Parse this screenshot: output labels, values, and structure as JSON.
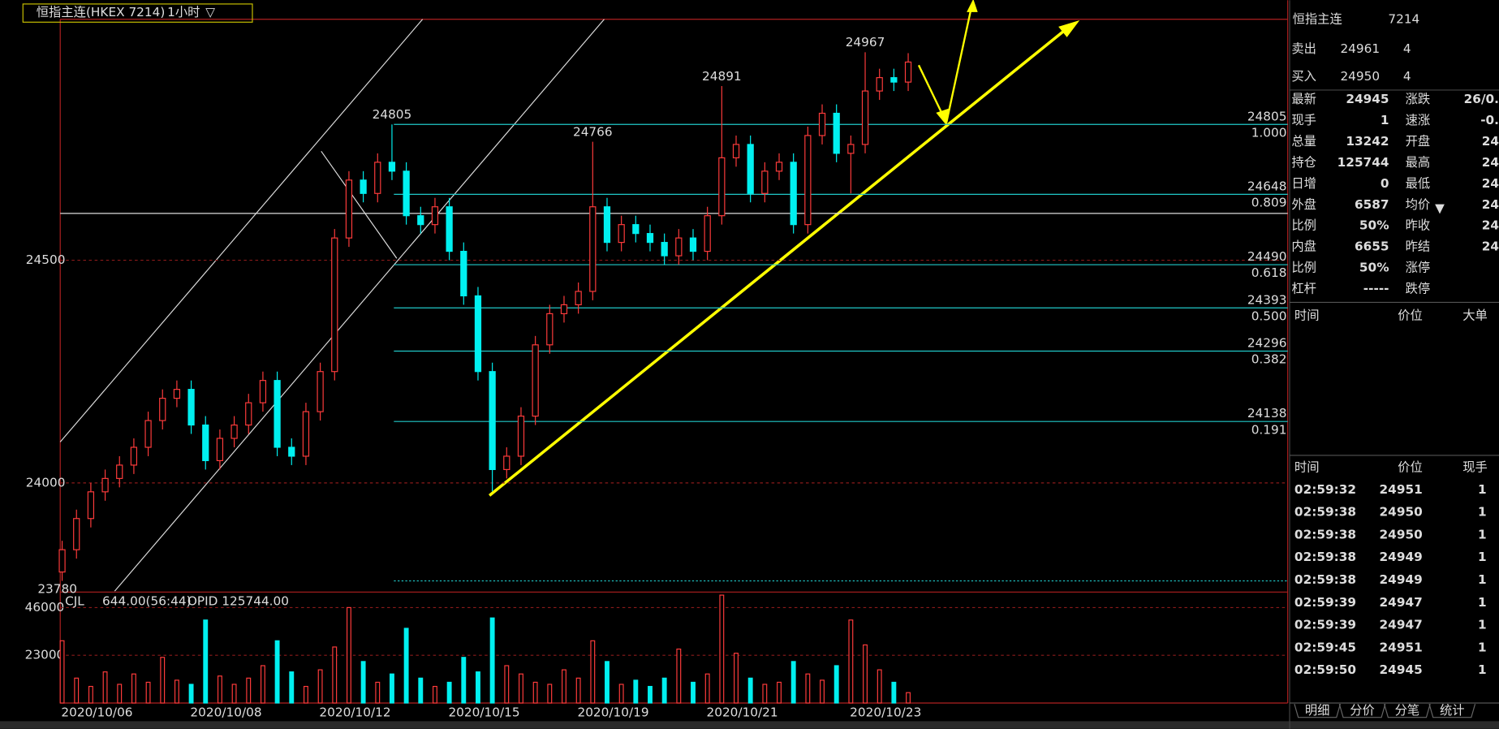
{
  "header": {
    "title": "恒指主连(HKEX 7214)",
    "period": "1小时"
  },
  "chart_data": {
    "type": "candlestick",
    "categories": [
      "2020/10/06",
      null,
      null,
      null,
      null,
      null,
      null,
      null,
      null,
      "2020/10/08",
      null,
      null,
      null,
      null,
      null,
      null,
      null,
      null,
      "2020/10/12",
      null,
      null,
      null,
      null,
      null,
      null,
      null,
      null,
      "2020/10/15",
      null,
      null,
      null,
      null,
      null,
      null,
      null,
      null,
      "2020/10/19",
      null,
      null,
      null,
      null,
      null,
      null,
      null,
      null,
      "2020/10/21",
      null,
      null,
      null,
      null,
      null,
      null,
      null,
      null,
      null,
      "2020/10/23",
      null,
      null,
      null,
      null
    ],
    "open": [
      23800,
      23850,
      23920,
      23980,
      24010,
      24040,
      24080,
      24140,
      24190,
      24210,
      24130,
      24050,
      24100,
      24130,
      24180,
      24230,
      24080,
      24060,
      24160,
      24250,
      24550,
      24680,
      24650,
      24720,
      24700,
      24600,
      24580,
      24620,
      24520,
      24420,
      24250,
      24030,
      24060,
      24150,
      24310,
      24380,
      24400,
      24430,
      24620,
      24540,
      24580,
      24560,
      24540,
      24510,
      24550,
      24520,
      24600,
      24730,
      24760,
      24650,
      24700,
      24720,
      24580,
      24780,
      24830,
      24740,
      24760,
      24880,
      24910,
      24900
    ],
    "high": [
      23870,
      23940,
      24000,
      24030,
      24060,
      24100,
      24160,
      24210,
      24230,
      24230,
      24150,
      24120,
      24150,
      24200,
      24250,
      24250,
      24100,
      24180,
      24270,
      24570,
      24700,
      24700,
      24740,
      24805,
      24720,
      24620,
      24640,
      24640,
      24540,
      24440,
      24270,
      24080,
      24170,
      24330,
      24400,
      24420,
      24450,
      24766,
      24640,
      24600,
      24600,
      24580,
      24560,
      24570,
      24570,
      24620,
      24891,
      24780,
      24780,
      24720,
      24740,
      24740,
      24800,
      24850,
      24850,
      24780,
      24967,
      24930,
      24930,
      24965
    ],
    "low": [
      23780,
      23830,
      23900,
      23960,
      23990,
      24020,
      24060,
      24120,
      24170,
      24110,
      24030,
      24030,
      24080,
      24110,
      24160,
      24060,
      24040,
      24040,
      24140,
      24230,
      24530,
      24630,
      24630,
      24680,
      24580,
      24560,
      24560,
      24500,
      24400,
      24230,
      23981,
      24010,
      24040,
      24130,
      24290,
      24360,
      24380,
      24410,
      24520,
      24520,
      24540,
      24520,
      24490,
      24490,
      24500,
      24500,
      24580,
      24710,
      24630,
      24630,
      24680,
      24560,
      24560,
      24760,
      24720,
      24650,
      24740,
      24860,
      24880,
      24880
    ],
    "close": [
      23850,
      23920,
      23980,
      24010,
      24040,
      24080,
      24140,
      24190,
      24210,
      24130,
      24050,
      24100,
      24130,
      24180,
      24230,
      24080,
      24060,
      24160,
      24250,
      24550,
      24680,
      24650,
      24720,
      24700,
      24600,
      24580,
      24620,
      24520,
      24420,
      24250,
      24030,
      24060,
      24150,
      24310,
      24380,
      24400,
      24430,
      24620,
      24540,
      24580,
      24560,
      24540,
      24510,
      24550,
      24520,
      24600,
      24730,
      24760,
      24650,
      24700,
      24720,
      24580,
      24780,
      24830,
      24740,
      24760,
      24880,
      24910,
      24900,
      24945
    ],
    "up_color": "#ff3b3b",
    "down_color": "#00f0f0",
    "ylim": [
      23757,
      25041
    ],
    "yticks": [
      24000,
      24500
    ],
    "fib_levels": [
      {
        "price": 24805,
        "ratio": "1.000"
      },
      {
        "price": 24648,
        "ratio": "0.809"
      },
      {
        "price": 24490,
        "ratio": "0.618"
      },
      {
        "price": 24393,
        "ratio": "0.500"
      },
      {
        "price": 24296,
        "ratio": "0.382"
      },
      {
        "price": 24138,
        "ratio": "0.191"
      }
    ],
    "volume": {
      "type": "bar",
      "label": "CJL",
      "reading": "644.00(56:44)",
      "opid": "OPID 125744.00",
      "values": [
        30000,
        12000,
        8000,
        15000,
        9000,
        14000,
        10000,
        22000,
        11000,
        9000,
        40000,
        13000,
        9000,
        12000,
        18000,
        30000,
        15000,
        8000,
        16000,
        27000,
        46000,
        20000,
        10000,
        14000,
        36000,
        12000,
        8000,
        10000,
        22000,
        15000,
        41000,
        18000,
        14000,
        10000,
        9000,
        16000,
        12000,
        30000,
        20000,
        9000,
        11000,
        8000,
        12000,
        26000,
        10000,
        14000,
        52000,
        24000,
        12000,
        9000,
        10000,
        20000,
        14000,
        11000,
        18000,
        40000,
        28000,
        16000,
        10000,
        5000
      ],
      "ylim": [
        0,
        53000
      ],
      "yticks": [
        23000,
        46000
      ]
    }
  },
  "quote": {
    "name": "恒指主连",
    "code": "7214",
    "sell": {
      "label": "卖出",
      "price": "24961",
      "qty": "4"
    },
    "buy": {
      "label": "买入",
      "price": "24950",
      "qty": "4"
    },
    "stats": [
      [
        "最新",
        "24945",
        "涨跌",
        "26/0."
      ],
      [
        "现手",
        "1",
        "速涨",
        "-0."
      ],
      [
        "总量",
        "13242",
        "开盘",
        "24"
      ],
      [
        "持仓",
        "125744",
        "最高",
        "24"
      ],
      [
        "日增",
        "0",
        "最低",
        "24"
      ],
      [
        "外盘",
        "6587",
        "均价",
        "24"
      ],
      [
        "比例",
        "50%",
        "昨收",
        "24"
      ],
      [
        "内盘",
        "6655",
        "昨结",
        "24"
      ],
      [
        "比例",
        "50%",
        "涨停"
      ],
      [
        "杠杆",
        "-----",
        "跌停"
      ]
    ]
  },
  "big_orders": {
    "header": [
      "时间",
      "价位",
      "大单"
    ]
  },
  "ticks": {
    "header": [
      "时间",
      "价位",
      "现手"
    ],
    "rows": [
      [
        "02:59:32",
        "24951",
        "1"
      ],
      [
        "02:59:38",
        "24950",
        "1"
      ],
      [
        "02:59:38",
        "24950",
        "1"
      ],
      [
        "02:59:38",
        "24949",
        "1"
      ],
      [
        "02:59:38",
        "24949",
        "1"
      ],
      [
        "02:59:39",
        "24947",
        "1"
      ],
      [
        "02:59:39",
        "24947",
        "1"
      ],
      [
        "02:59:45",
        "24951",
        "1"
      ],
      [
        "02:59:50",
        "24945",
        "1"
      ]
    ]
  },
  "tabs": [
    "明细",
    "分价",
    "分笔",
    "统计"
  ]
}
